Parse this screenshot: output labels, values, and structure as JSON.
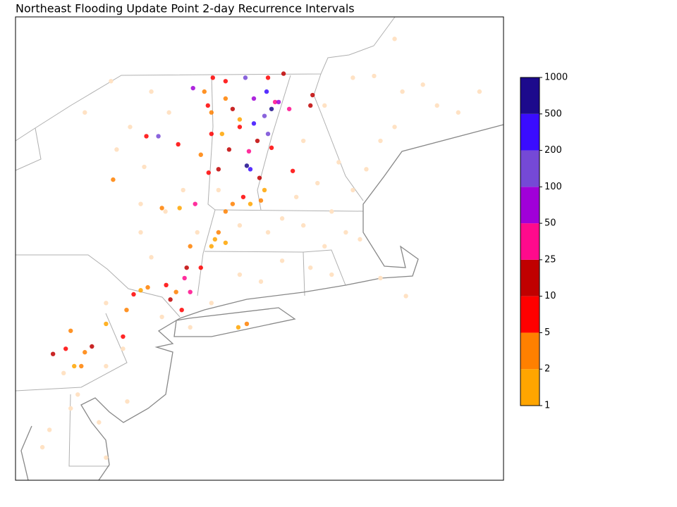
{
  "chart_data": {
    "type": "map",
    "title": "Northeast Flooding Update Point 2-day Recurrence Intervals",
    "xlim": [
      -76.1,
      -69.2
    ],
    "ylim": [
      38.0,
      46.0
    ],
    "below_color": "#ffe2c4",
    "levels": [
      1,
      2,
      5,
      10,
      25,
      50,
      100,
      200,
      500,
      1000
    ],
    "level_colors": [
      "#ffa500",
      "#ff8000",
      "#ff0000",
      "#c00000",
      "#ff0a8c",
      "#a000d8",
      "#7549d6",
      "#3a0cff",
      "#1c0a8c"
    ],
    "lon": [
      -72.55,
      -72.48,
      -72.73,
      -72.58,
      -72.83,
      -72.78,
      -72.85,
      -72.38,
      -72.53,
      -74.08,
      -73.59,
      -72.68,
      -73.03,
      -72.31,
      -71.9,
      -71.93,
      -72.8,
      -72.23,
      -73.56,
      -73.71,
      -73.63,
      -73.38,
      -73.13,
      -73.33,
      -72.93,
      -72.48,
      -72.18,
      -72.88,
      -74.25,
      -73.8,
      -73.37,
      -73.68,
      -73.97,
      -73.75,
      -74.58,
      -75.39,
      -75.57,
      -75.02,
      -73.91,
      -74.43,
      -73.48,
      -73.23,
      -73.08,
      -72.43,
      -72.73,
      -72.65,
      -73.31,
      -72.53,
      -73.33,
      -73.18,
      -73.13,
      -73.23,
      -73.33,
      -73.13,
      -73.03,
      -72.78,
      -72.63,
      -73.48,
      -74.03,
      -73.78,
      -73.63,
      -74.72,
      -74.53,
      -74.82,
      -75.32,
      -75.12,
      -75.27,
      -74.23,
      -72.83,
      -72.95,
      -73.28,
      -72.93,
      -73.13,
      -73.43,
      -72.58,
      -73.83,
      -75.17,
      -74.33,
      -74.75,
      -75.12,
      -74.67,
      -74.28,
      -73.93,
      -73.98,
      -74.33,
      -74.18,
      -74.82,
      -75.22,
      -74.52,
      -74.92,
      -75.32,
      -75.62,
      -74.82,
      -72.03,
      -71.73,
      -71.33,
      -71.03,
      -70.63,
      -70.34,
      -70.14,
      -69.84,
      -69.54,
      -70.74,
      -70.94,
      -71.14,
      -71.53,
      -71.33,
      -71.63,
      -72.03,
      -72.33,
      -71.43,
      -71.73,
      -71.23,
      -71.93,
      -72.33,
      -72.63,
      -72.93,
      -71.63,
      -70.94,
      -70.58,
      -70.74,
      -72.53,
      -73.33,
      -73.63,
      -74.58,
      -74.82,
      -75.42,
      -75.72,
      -74.18,
      -74.48,
      -73.73,
      -73.53,
      -72.93,
      -72.13,
      -71.83,
      -73.23,
      -74.33,
      -74.03
    ],
    "lat": [
      44.71,
      44.41,
      44.16,
      44.29,
      43.43,
      43.37,
      44.95,
      44.53,
      43.98,
      43.94,
      44.77,
      43.86,
      44.41,
      45.02,
      44.65,
      44.47,
      43.68,
      44.41,
      42.77,
      41.49,
      41.25,
      44.47,
      44.89,
      43.98,
      44.1,
      43.74,
      43.34,
      42.89,
      43.94,
      43.8,
      43.31,
      41.67,
      41.37,
      40.94,
      40.48,
      40.27,
      40.18,
      40.31,
      41.12,
      41.21,
      41.67,
      43.37,
      43.71,
      44.53,
      44.59,
      43.22,
      44.95,
      44.95,
      44.35,
      43.98,
      42.64,
      42.28,
      42.04,
      42.1,
      42.77,
      42.77,
      42.83,
      43.62,
      42.7,
      42.7,
      42.04,
      43.19,
      40.94,
      40.7,
      40.58,
      40.21,
      39.97,
      41.33,
      40.7,
      40.64,
      42.16,
      44.23,
      44.59,
      44.71,
      43.01,
      41.25,
      39.97,
      41.28,
      44.89,
      44.35,
      43.71,
      43.41,
      44.35,
      42.64,
      42.28,
      41.85,
      41.06,
      39.48,
      39.36,
      39.0,
      39.24,
      38.87,
      38.39,
      43.86,
      44.47,
      44.95,
      44.98,
      44.71,
      44.83,
      44.47,
      44.35,
      44.71,
      44.1,
      43.86,
      43.37,
      43.49,
      43.01,
      42.64,
      42.4,
      42.52,
      42.28,
      42.04,
      42.16,
      41.67,
      41.79,
      41.43,
      41.55,
      41.55,
      41.49,
      41.18,
      45.62,
      42.28,
      41.06,
      40.64,
      40.27,
      39.97,
      39.85,
      38.57,
      44.71,
      44.1,
      43.01,
      42.28,
      42.4,
      42.89,
      43.13,
      43.01,
      42.77,
      40.82
    ],
    "values": [
      300,
      700,
      300,
      150,
      700,
      300,
      150,
      70,
      150,
      150,
      70,
      15,
      15,
      15,
      15,
      15,
      30,
      30,
      30,
      30,
      30,
      7,
      7,
      7,
      7,
      7,
      7,
      7,
      7,
      7,
      7,
      15,
      7,
      7,
      7,
      7,
      15,
      15,
      15,
      7,
      7,
      15,
      15,
      30,
      70,
      15,
      7,
      7,
      3,
      1.5,
      3,
      3,
      1.5,
      1.5,
      3,
      1.5,
      3,
      3,
      3,
      1.5,
      3,
      3,
      3,
      1.5,
      3,
      3,
      1.5,
      3,
      3,
      1.5,
      1.5,
      1.5,
      3,
      3,
      1.5,
      3,
      3,
      1.5,
      0.5,
      0.5,
      0.5,
      0.5,
      0.5,
      0.5,
      0.5,
      0.5,
      0.5,
      0.5,
      0.5,
      0.5,
      0.5,
      0.5,
      0.5,
      0.5,
      0.5,
      0.5,
      0.5,
      0.5,
      0.5,
      0.5,
      0.5,
      0.5,
      0.5,
      0.5,
      0.5,
      0.5,
      0.5,
      0.5,
      0.5,
      0.5,
      0.5,
      0.5,
      0.5,
      0.5,
      0.5,
      0.5,
      0.5,
      0.5,
      0.5,
      0.5,
      0.5,
      0.5,
      0.5,
      0.5,
      0.5,
      0.5,
      0.5,
      0.5,
      0.5,
      0.5,
      0.5,
      0.5,
      0.5,
      0.5,
      0.5,
      0.5,
      0.5,
      0.5
    ]
  }
}
